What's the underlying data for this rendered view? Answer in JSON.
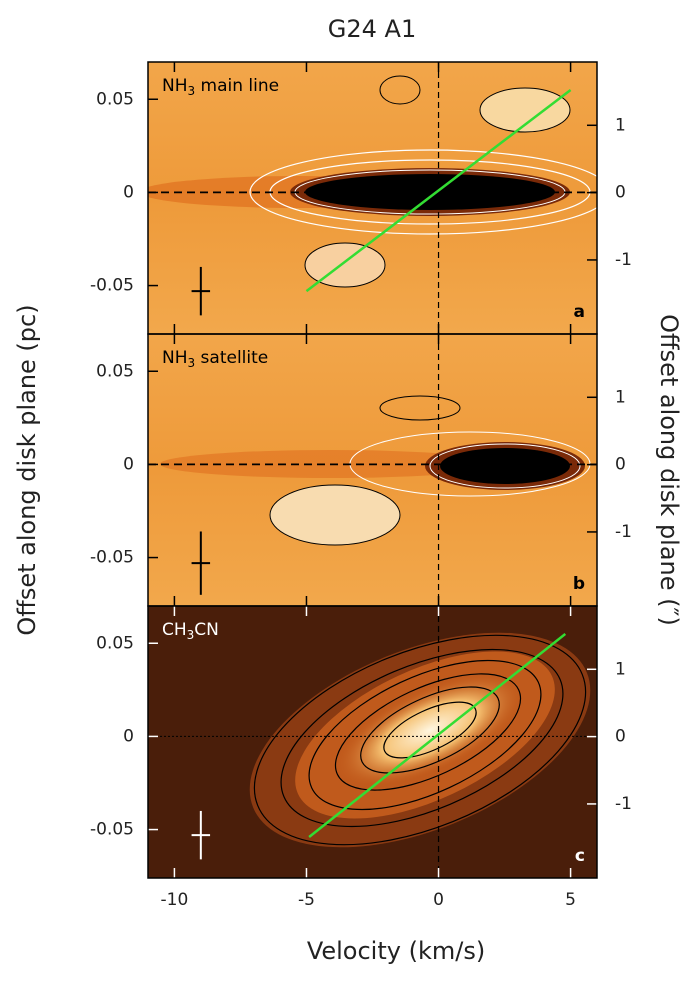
{
  "figure": {
    "title": "G24 A1",
    "xlabel": "Velocity (km/s)",
    "ylabel": "Offset along disk plane (pc)",
    "y2label": "Offset along disk plane (″)"
  },
  "chart_data": [
    {
      "type": "pv",
      "label": [
        "NH",
        "3",
        " main line"
      ],
      "panel": "a",
      "xlim": [
        -11,
        6
      ],
      "xticks": [
        -10,
        -5,
        0,
        5
      ],
      "ylim": [
        -0.076,
        0.07
      ],
      "yticks": [
        0.05,
        0,
        -0.05
      ],
      "y2lim": [
        -2.1,
        1.94
      ],
      "y2ticks": [
        1,
        0,
        -1
      ],
      "fit": {
        "x": [
          -5,
          5
        ],
        "y": [
          -0.053,
          0.055
        ],
        "color": "#33dd33"
      },
      "errorbar": {
        "x": -9,
        "y": -0.053,
        "xerr": 0.35,
        "yerr": 0.013,
        "color": "#000000"
      }
    },
    {
      "type": "pv",
      "label": [
        "NH",
        "3",
        " satellite"
      ],
      "panel": "b",
      "xlim": [
        -11,
        6
      ],
      "xticks": [
        -10,
        -5,
        0,
        5
      ],
      "ylim": [
        -0.076,
        0.07
      ],
      "yticks": [
        0.05,
        0,
        -0.05
      ],
      "y2lim": [
        -2.1,
        1.94
      ],
      "y2ticks": [
        1,
        0,
        -1
      ],
      "errorbar": {
        "x": -9,
        "y": -0.053,
        "xerr": 0.35,
        "yerr": 0.017,
        "color": "#000000"
      }
    },
    {
      "type": "pv",
      "label": [
        "CH",
        "3",
        "CN"
      ],
      "panel": "c",
      "xlim": [
        -11,
        6
      ],
      "xticks": [
        -10,
        -5,
        0,
        5
      ],
      "ylim": [
        -0.076,
        0.07
      ],
      "yticks": [
        0.05,
        0,
        -0.05
      ],
      "y2lim": [
        -2.1,
        1.94
      ],
      "y2ticks": [
        1,
        0,
        -1
      ],
      "fit": {
        "x": [
          -4.9,
          4.8
        ],
        "y": [
          -0.054,
          0.055
        ],
        "color": "#33dd33"
      },
      "errorbar": {
        "x": -9,
        "y": -0.053,
        "xerr": 0.35,
        "yerr": 0.013,
        "color": "#ffffff"
      }
    }
  ]
}
